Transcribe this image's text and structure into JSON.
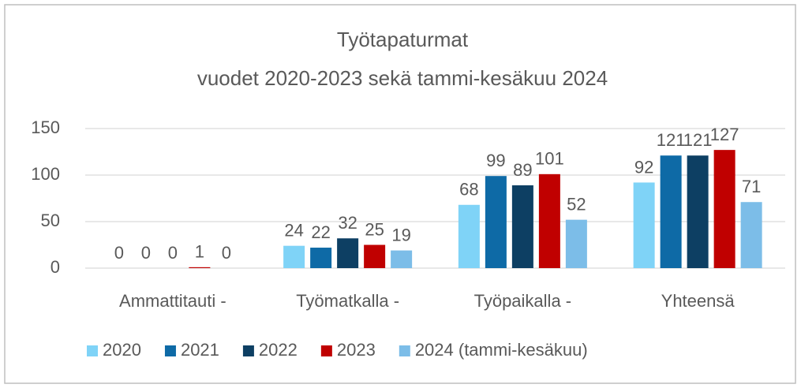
{
  "chart_data": {
    "type": "bar",
    "title": "Työtapaturmat",
    "subtitle": "vuodet 2020-2023 sekä tammi-kesäkuu 2024",
    "categories": [
      "Ammattitauti -",
      "Työmatkalla -",
      "Työpaikalla -",
      "Yhteensä"
    ],
    "series": [
      {
        "name": "2020",
        "color": "#7fd3f7",
        "values": [
          0,
          24,
          68,
          92
        ]
      },
      {
        "name": "2021",
        "color": "#0e6aa6",
        "values": [
          0,
          22,
          99,
          121
        ]
      },
      {
        "name": "2022",
        "color": "#0d3f63",
        "values": [
          0,
          32,
          89,
          121
        ]
      },
      {
        "name": "2023",
        "color": "#c00000",
        "values": [
          1,
          25,
          101,
          127
        ]
      },
      {
        "name": "2024 (tammi-kesäkuu)",
        "color": "#7cbde8",
        "values": [
          0,
          19,
          52,
          71
        ]
      }
    ],
    "ylim": [
      0,
      150
    ],
    "yticks": [
      0,
      50,
      100,
      150
    ],
    "grid": true,
    "legend": "bottom"
  }
}
